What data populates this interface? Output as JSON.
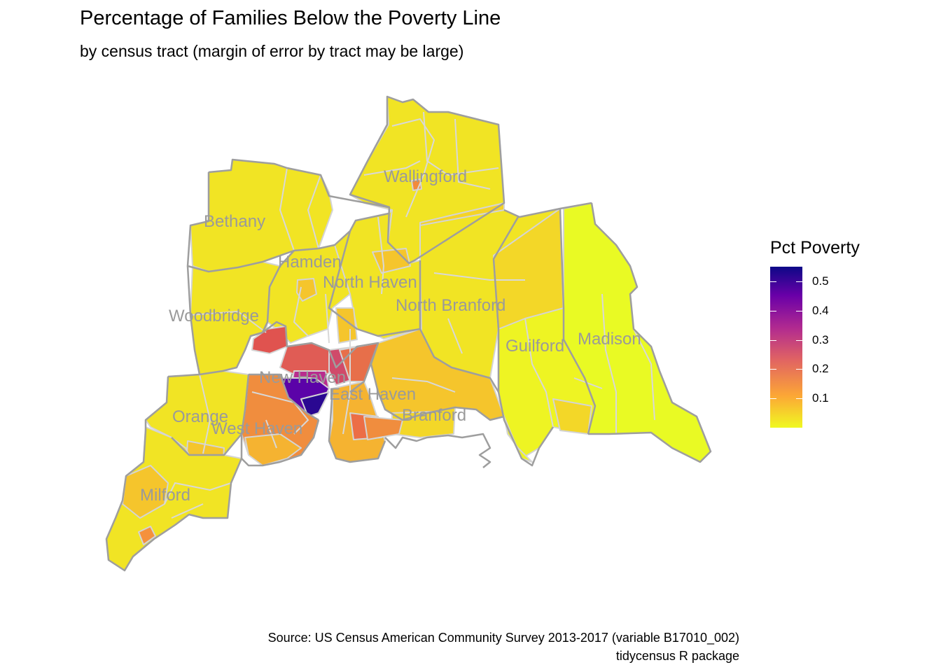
{
  "title": "Percentage of Families Below the Poverty Line",
  "subtitle": "by census tract (margin of error by tract may be large)",
  "legend": {
    "title": "Pct Poverty",
    "ticks": [
      "0.5",
      "0.4",
      "0.3",
      "0.2",
      "0.1"
    ],
    "tick_values": [
      0.5,
      0.4,
      0.3,
      0.2,
      0.1
    ],
    "min": 0.0,
    "max": 0.55,
    "palette": [
      "#0d0887",
      "#6a00a8",
      "#b12a90",
      "#e16462",
      "#fca636",
      "#f0f921"
    ]
  },
  "towns": [
    "Wallingford",
    "Bethany",
    "Hamden",
    "North Haven",
    "North Branford",
    "Woodbridge",
    "Guilford",
    "Madison",
    "New Haven",
    "East Haven",
    "Orange",
    "Branford",
    "West Haven",
    "Milford"
  ],
  "caption": {
    "line1": "Source: US Census American Community Survey 2013-2017 (variable B17010_002)",
    "line2": "tidycensus R package"
  },
  "colors": {
    "town_border": "#9e9e9e",
    "tract_border": "#d4d4d4",
    "town_label": "#9a9a9a"
  }
}
